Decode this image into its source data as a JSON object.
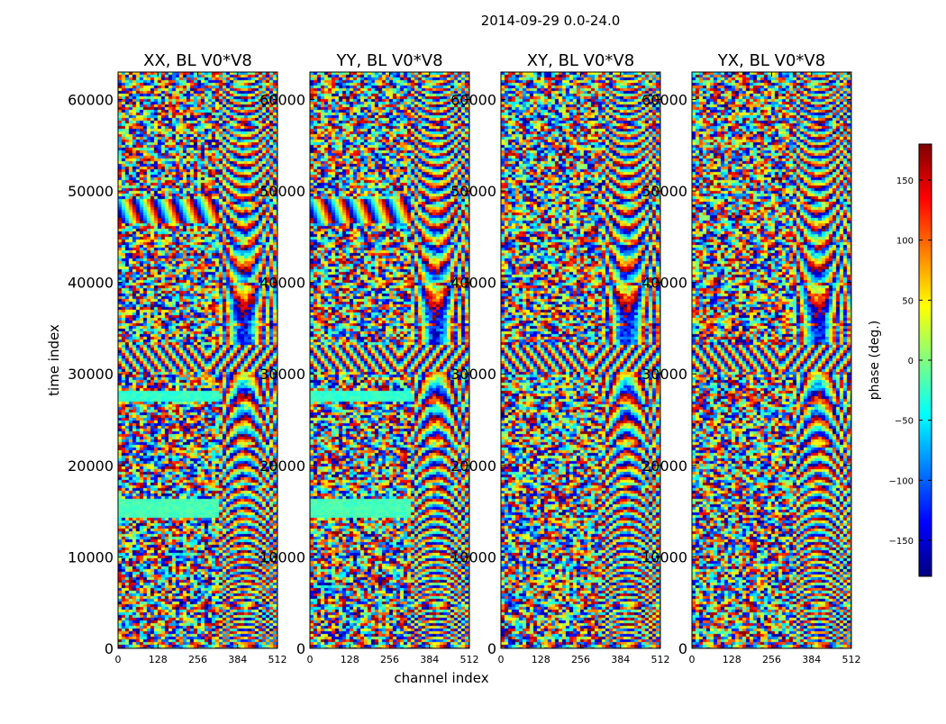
{
  "chart_data": {
    "type": "heatmap",
    "title": "2014-09-29 0.0-24.0",
    "xlabel": "channel index",
    "ylabel": "time index",
    "xlim": [
      0,
      512
    ],
    "ylim": [
      0,
      63000
    ],
    "x_ticks": [
      0,
      128,
      256,
      384,
      512
    ],
    "y_ticks": [
      0,
      10000,
      20000,
      30000,
      40000,
      50000,
      60000
    ],
    "colormap": "jet",
    "colorbar": {
      "label": "phase (deg.)",
      "range": [
        -180,
        180
      ],
      "ticks": [
        -150,
        -100,
        -50,
        0,
        50,
        100,
        150
      ],
      "tick_labels": [
        "−150",
        "−100",
        "−50",
        "0",
        "50",
        "100",
        "150"
      ],
      "colors": [
        "#00007f",
        "#0000ff",
        "#007fff",
        "#00ffff",
        "#7fff7f",
        "#ffff00",
        "#ff7f00",
        "#ff0000",
        "#7f0000"
      ]
    },
    "panels": [
      {
        "name": "XX",
        "title": "XX, BL V0*V8"
      },
      {
        "name": "YY",
        "title": "YY, BL V0*V8"
      },
      {
        "name": "XY",
        "title": "XY, BL V0*V8"
      },
      {
        "name": "YX",
        "title": "YX, BL V0*V8"
      }
    ]
  }
}
